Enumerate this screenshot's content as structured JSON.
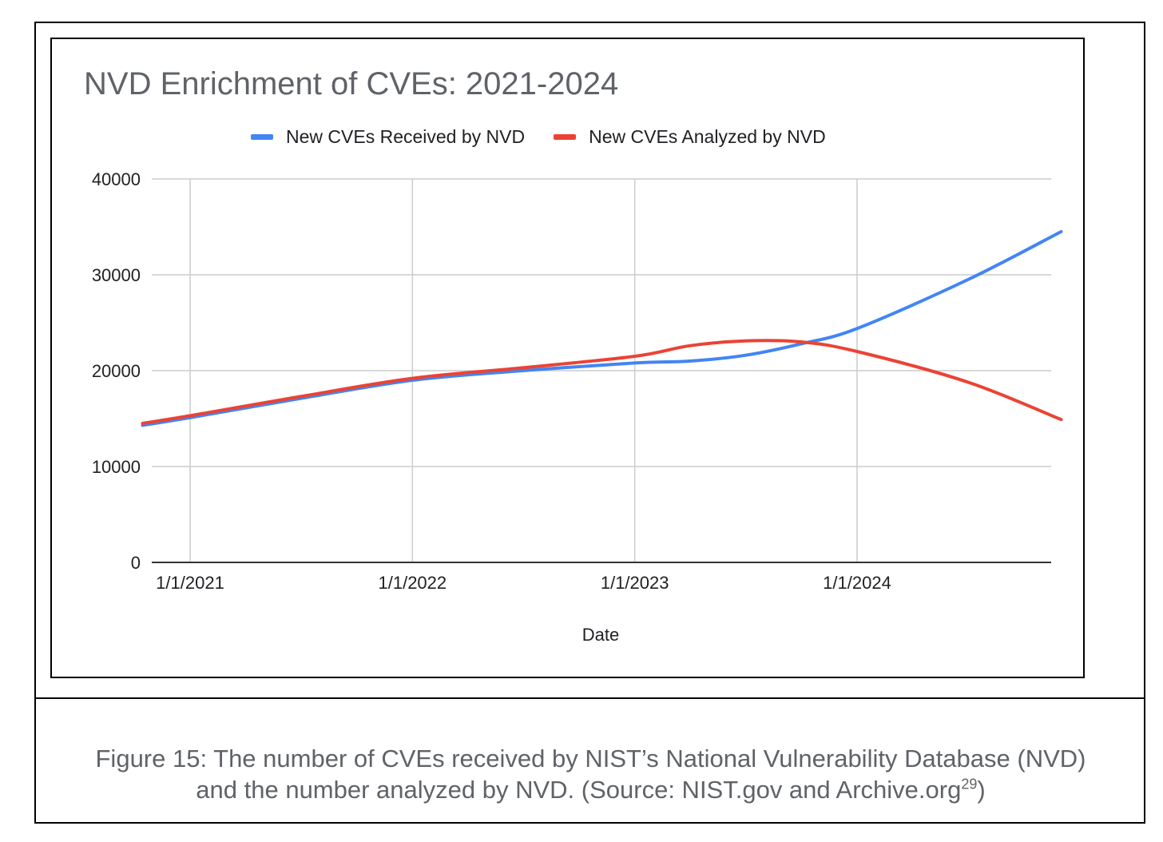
{
  "chart_data": {
    "type": "line",
    "title": "NVD Enrichment of CVEs: 2021-2024",
    "xlabel": "Date",
    "ylabel": "",
    "ylim": [
      0,
      40000
    ],
    "yticks": [
      "0",
      "10000",
      "20000",
      "30000",
      "40000"
    ],
    "xticks": [
      "1/1/2021",
      "1/1/2022",
      "1/1/2023",
      "1/1/2024"
    ],
    "x": [
      "2020-10-15",
      "2021-01-01",
      "2021-07-01",
      "2022-01-01",
      "2022-07-01",
      "2023-01-01",
      "2023-04-01",
      "2023-07-01",
      "2023-10-01",
      "2024-01-01",
      "2024-07-01",
      "2024-12-01"
    ],
    "series": [
      {
        "name": "New CVEs Received by NVD",
        "color": "#4285f4",
        "values": [
          14300,
          15100,
          17100,
          19000,
          20000,
          20800,
          21000,
          21600,
          22800,
          24400,
          29500,
          34500
        ]
      },
      {
        "name": "New CVEs Analyzed by NVD",
        "color": "#ea4335",
        "values": [
          14500,
          15300,
          17300,
          19200,
          20300,
          21500,
          22600,
          23100,
          23000,
          22000,
          18800,
          14900
        ]
      }
    ],
    "grid": true,
    "legend_position": "top"
  },
  "caption": {
    "line1": "Figure 15: The number of CVEs received by NIST’s National Vulnerability Database (NVD)",
    "line2": "and the number analyzed by NVD. (Source: NIST.gov and Archive.org",
    "footnote": "29",
    "close": ")"
  }
}
